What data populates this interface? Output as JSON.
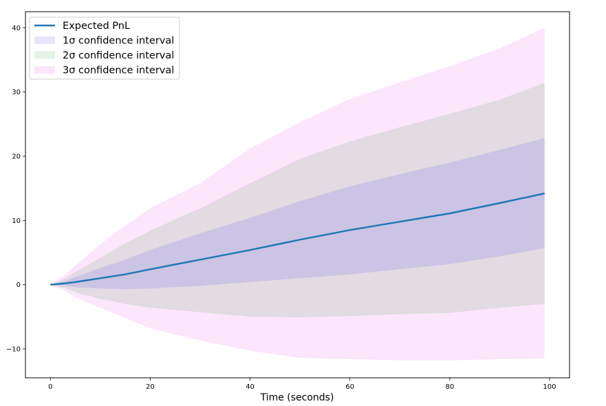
{
  "chart_data": {
    "type": "area",
    "title": "",
    "xlabel": "Time (seconds)",
    "ylabel": "",
    "xlim": [
      -5,
      104
    ],
    "ylim": [
      -14.5,
      42.5
    ],
    "x_ticks": [
      0,
      20,
      40,
      60,
      80,
      100
    ],
    "x_tick_labels": [
      "0",
      "20",
      "40",
      "60",
      "80",
      "100"
    ],
    "y_ticks": [
      -10,
      0,
      10,
      20,
      30,
      40
    ],
    "y_tick_labels": [
      "−10",
      "0",
      "10",
      "20",
      "30",
      "40"
    ],
    "grid": false,
    "legend_position": "top-left",
    "x": [
      0,
      3,
      5,
      10,
      15,
      20,
      30,
      40,
      50,
      60,
      70,
      80,
      90,
      99
    ],
    "series": [
      {
        "name": "Expected PnL",
        "kind": "line",
        "color": "#1f77b4",
        "values": [
          0,
          0.2,
          0.4,
          1.0,
          1.6,
          2.4,
          3.9,
          5.4,
          7.0,
          8.5,
          9.8,
          11.1,
          12.7,
          14.2
        ]
      },
      {
        "name": "1σ confidence interval",
        "kind": "band",
        "color": "#0000ff",
        "opacity": 0.1,
        "lower": [
          0,
          -0.2,
          -0.4,
          -0.6,
          -0.7,
          -0.6,
          -0.2,
          0.4,
          1.0,
          1.6,
          2.4,
          3.2,
          4.4,
          5.7
        ],
        "upper": [
          0,
          0.6,
          1.2,
          2.6,
          3.9,
          5.4,
          8.0,
          10.4,
          13.0,
          15.3,
          17.2,
          19.0,
          21.0,
          22.8
        ]
      },
      {
        "name": "2σ confidence interval",
        "kind": "band",
        "color": "#008000",
        "opacity": 0.1,
        "lower": [
          0,
          -0.6,
          -1.2,
          -2.2,
          -3.0,
          -3.6,
          -4.3,
          -5.0,
          -5.1,
          -4.9,
          -4.6,
          -4.4,
          -3.6,
          -3.0
        ],
        "upper": [
          0,
          1.0,
          2.0,
          4.2,
          6.4,
          8.4,
          11.9,
          15.8,
          19.6,
          22.3,
          24.5,
          26.6,
          28.8,
          31.4
        ]
      },
      {
        "name": "3σ confidence interval",
        "kind": "band",
        "color": "#ee82ee",
        "opacity": 0.2,
        "lower": [
          0,
          -1.0,
          -2.0,
          -3.6,
          -5.2,
          -6.8,
          -8.7,
          -10.3,
          -11.4,
          -11.6,
          -11.8,
          -11.8,
          -11.6,
          -11.5
        ],
        "upper": [
          0,
          1.6,
          3.0,
          6.3,
          9.2,
          11.9,
          15.8,
          21.2,
          25.3,
          28.9,
          31.5,
          34.0,
          36.8,
          40.0
        ]
      }
    ]
  }
}
